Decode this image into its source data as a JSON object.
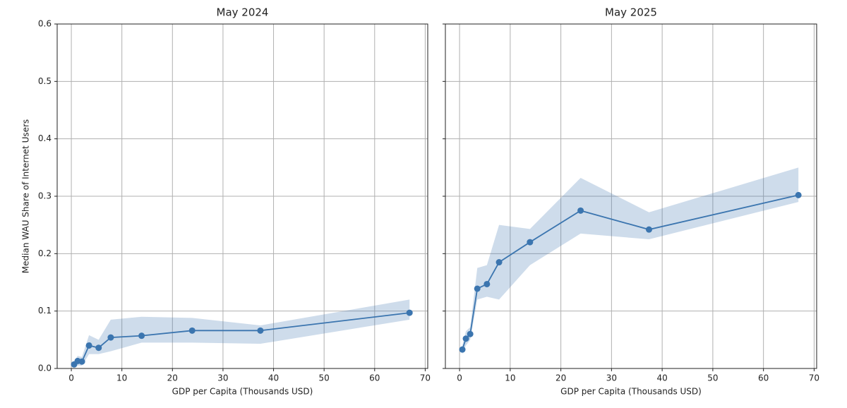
{
  "chart_data": [
    {
      "type": "line",
      "title": "May 2024",
      "xlabel": "GDP per Capita (Thousands USD)",
      "ylabel": "Median WAU Share of Internet Users",
      "x": [
        0.55,
        1.25,
        2.1,
        3.5,
        5.4,
        7.8,
        13.9,
        23.9,
        37.4,
        66.9
      ],
      "values": [
        0.007,
        0.013,
        0.012,
        0.04,
        0.036,
        0.054,
        0.057,
        0.066,
        0.066,
        0.097
      ],
      "band_lower": [
        0.002,
        0.005,
        0.005,
        0.025,
        0.025,
        0.03,
        0.045,
        0.045,
        0.043,
        0.085
      ],
      "band_upper": [
        0.012,
        0.022,
        0.02,
        0.058,
        0.05,
        0.085,
        0.09,
        0.088,
        0.075,
        0.12
      ],
      "color": "#3b75af",
      "grid": true,
      "xlim": [
        -2.8,
        70.5
      ],
      "xticks": [
        0,
        10,
        20,
        30,
        40,
        50,
        60,
        70
      ],
      "ylim": [
        0,
        0.6
      ],
      "yticks": [
        {
          "value": 0,
          "label": "0.0"
        },
        0.1,
        0.2,
        0.3,
        0.4,
        0.5,
        0.6
      ]
    },
    {
      "type": "line",
      "title": "May 2025",
      "xlabel": "GDP per Capita (Thousands USD)",
      "sharey": true,
      "x": [
        0.55,
        1.25,
        2.1,
        3.5,
        5.4,
        7.8,
        13.9,
        23.9,
        37.4,
        66.9
      ],
      "values": [
        0.033,
        0.052,
        0.06,
        0.139,
        0.147,
        0.185,
        0.22,
        0.275,
        0.242,
        0.302
      ],
      "band_lower": [
        0.025,
        0.04,
        0.05,
        0.12,
        0.125,
        0.12,
        0.18,
        0.235,
        0.225,
        0.29
      ],
      "band_upper": [
        0.04,
        0.065,
        0.072,
        0.175,
        0.18,
        0.25,
        0.243,
        0.332,
        0.272,
        0.35
      ],
      "color": "#3b75af",
      "grid": true,
      "xlim": [
        -2.8,
        70.5
      ],
      "xticks": [
        0,
        10,
        20,
        30,
        40,
        50,
        60,
        70
      ],
      "ylim": [
        0,
        0.6
      ],
      "yticks": [
        {
          "value": 0,
          "label": "0.0"
        },
        0.1,
        0.2,
        0.3,
        0.4,
        0.5,
        0.6
      ]
    }
  ]
}
